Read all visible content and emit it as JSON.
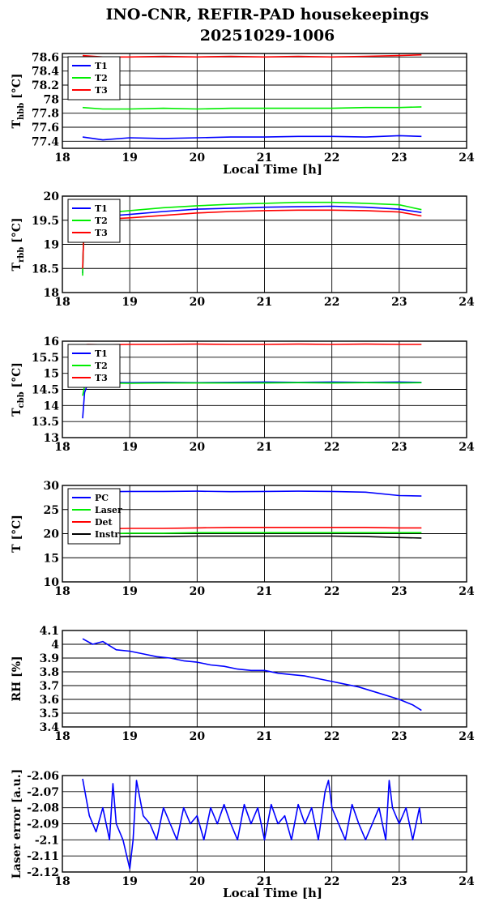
{
  "title": "INO-CNR, REFIR-PAD housekeepings",
  "subtitle": "20251029-1006",
  "colors": {
    "blue": "#0000ff",
    "green": "#00ee00",
    "red": "#ff0000",
    "black": "#000000",
    "grid": "#000000"
  },
  "chart_data": [
    {
      "type": "line",
      "ylabel": "T",
      "ylabel_sub": "hbb",
      "ylabel_unit": " [°C]",
      "xlabel": "Local Time [h]",
      "xlim": [
        18,
        24
      ],
      "ylim": [
        77.3,
        78.65
      ],
      "xticks": [
        "18",
        "19",
        "20",
        "21",
        "22",
        "23",
        "24"
      ],
      "yticks": [
        "77.4",
        "77.6",
        "77.8",
        "78",
        "78.2",
        "78.4",
        "78.6"
      ],
      "grid": true,
      "legend": "top-left",
      "x": [
        18.3,
        18.6,
        19.0,
        19.5,
        20.0,
        20.5,
        21.0,
        21.5,
        22.0,
        22.5,
        23.0,
        23.33
      ],
      "series": [
        {
          "name": "T1",
          "color": "blue",
          "values": [
            77.46,
            77.42,
            77.45,
            77.44,
            77.45,
            77.46,
            77.46,
            77.47,
            77.47,
            77.46,
            77.48,
            77.47
          ]
        },
        {
          "name": "T2",
          "color": "green",
          "values": [
            77.88,
            77.86,
            77.86,
            77.87,
            77.86,
            77.87,
            77.87,
            77.87,
            77.87,
            77.88,
            77.88,
            77.89
          ]
        },
        {
          "name": "T3",
          "color": "red",
          "values": [
            78.62,
            78.6,
            78.6,
            78.61,
            78.6,
            78.61,
            78.6,
            78.61,
            78.6,
            78.61,
            78.62,
            78.63
          ]
        }
      ]
    },
    {
      "type": "line",
      "ylabel": "T",
      "ylabel_sub": "rbb",
      "ylabel_unit": " [°C]",
      "xlabel": "",
      "xlim": [
        18,
        24
      ],
      "ylim": [
        18,
        20
      ],
      "xticks": [
        "18",
        "19",
        "20",
        "21",
        "22",
        "23",
        "24"
      ],
      "yticks": [
        "18",
        "18.5",
        "19",
        "19.5",
        "20"
      ],
      "grid": true,
      "legend": "top-left",
      "x": [
        18.3,
        18.32,
        18.4,
        18.6,
        19.0,
        19.5,
        20.0,
        20.5,
        21.0,
        21.5,
        22.0,
        22.5,
        23.0,
        23.33
      ],
      "series": [
        {
          "name": "T1",
          "color": "blue",
          "values": [
            18.4,
            19.4,
            19.52,
            19.58,
            19.62,
            19.68,
            19.73,
            19.75,
            19.77,
            19.78,
            19.79,
            19.77,
            19.73,
            19.66
          ]
        },
        {
          "name": "T2",
          "color": "green",
          "values": [
            18.35,
            19.5,
            19.6,
            19.65,
            19.7,
            19.76,
            19.8,
            19.83,
            19.85,
            19.87,
            19.87,
            19.85,
            19.82,
            19.72
          ]
        },
        {
          "name": "T3",
          "color": "red",
          "values": [
            18.5,
            19.3,
            19.48,
            19.52,
            19.55,
            19.6,
            19.65,
            19.68,
            19.7,
            19.71,
            19.71,
            19.7,
            19.67,
            19.59
          ]
        }
      ]
    },
    {
      "type": "line",
      "ylabel": "T",
      "ylabel_sub": "cbb",
      "ylabel_unit": " [°C]",
      "xlabel": "",
      "xlim": [
        18,
        24
      ],
      "ylim": [
        13,
        16
      ],
      "xticks": [
        "18",
        "19",
        "20",
        "21",
        "22",
        "23",
        "24"
      ],
      "yticks": [
        "13",
        "13.5",
        "14",
        "14.5",
        "15",
        "15.5",
        "16"
      ],
      "grid": true,
      "legend": "top-left",
      "x": [
        18.3,
        18.33,
        18.38,
        18.6,
        19.0,
        19.5,
        20.0,
        20.5,
        21.0,
        21.5,
        22.0,
        22.5,
        23.0,
        23.33
      ],
      "series": [
        {
          "name": "T1",
          "color": "blue",
          "values": [
            13.6,
            14.4,
            14.7,
            14.72,
            14.71,
            14.72,
            14.71,
            14.72,
            14.73,
            14.72,
            14.73,
            14.72,
            14.73,
            14.72
          ]
        },
        {
          "name": "T2",
          "color": "green",
          "values": [
            14.3,
            14.6,
            14.68,
            14.7,
            14.69,
            14.7,
            14.7,
            14.7,
            14.7,
            14.71,
            14.7,
            14.71,
            14.7,
            14.71
          ]
        },
        {
          "name": "T3",
          "color": "red",
          "values": [
            15.88,
            15.89,
            15.9,
            15.89,
            15.9,
            15.9,
            15.91,
            15.9,
            15.9,
            15.91,
            15.9,
            15.91,
            15.9,
            15.9
          ]
        }
      ]
    },
    {
      "type": "line",
      "ylabel": "T [°C]",
      "ylabel_sub": "",
      "ylabel_unit": "",
      "xlabel": "",
      "xlim": [
        18,
        24
      ],
      "ylim": [
        10,
        30
      ],
      "xticks": [
        "18",
        "19",
        "20",
        "21",
        "22",
        "23",
        "24"
      ],
      "yticks": [
        "10",
        "15",
        "20",
        "25",
        "30"
      ],
      "grid": true,
      "legend": "top-left",
      "x": [
        18.3,
        18.6,
        19.0,
        19.5,
        20.0,
        20.5,
        21.0,
        21.5,
        22.0,
        22.5,
        23.0,
        23.33
      ],
      "series": [
        {
          "name": "PC",
          "color": "blue",
          "values": [
            28.7,
            28.7,
            28.75,
            28.75,
            28.8,
            28.7,
            28.75,
            28.8,
            28.75,
            28.6,
            27.9,
            27.8
          ]
        },
        {
          "name": "Laser",
          "color": "green",
          "values": [
            20.0,
            20.0,
            20.1,
            20.1,
            20.2,
            20.2,
            20.2,
            20.2,
            20.2,
            20.2,
            20.2,
            20.2
          ]
        },
        {
          "name": "Det",
          "color": "red",
          "values": [
            20.9,
            21.0,
            21.1,
            21.1,
            21.2,
            21.3,
            21.3,
            21.3,
            21.3,
            21.3,
            21.2,
            21.2
          ]
        },
        {
          "name": "Instr",
          "color": "black",
          "values": [
            19.3,
            19.3,
            19.4,
            19.4,
            19.5,
            19.5,
            19.5,
            19.5,
            19.5,
            19.4,
            19.2,
            19.1
          ]
        }
      ]
    },
    {
      "type": "line",
      "ylabel": "RH [%]",
      "ylabel_sub": "",
      "ylabel_unit": "",
      "xlabel": "",
      "xlim": [
        18,
        24
      ],
      "ylim": [
        3.4,
        4.1
      ],
      "xticks": [
        "18",
        "19",
        "20",
        "21",
        "22",
        "23",
        "24"
      ],
      "yticks": [
        "3.4",
        "3.5",
        "3.6",
        "3.7",
        "3.8",
        "3.9",
        "4",
        "4.1"
      ],
      "grid": true,
      "legend": "none",
      "x": [
        18.3,
        18.45,
        18.6,
        18.8,
        19.0,
        19.2,
        19.4,
        19.6,
        19.8,
        20.0,
        20.2,
        20.4,
        20.6,
        20.8,
        21.0,
        21.2,
        21.4,
        21.6,
        21.8,
        22.0,
        22.2,
        22.4,
        22.6,
        22.8,
        23.0,
        23.2,
        23.33
      ],
      "series": [
        {
          "name": "RH",
          "color": "blue",
          "values": [
            4.04,
            4.0,
            4.02,
            3.96,
            3.95,
            3.93,
            3.91,
            3.9,
            3.88,
            3.87,
            3.85,
            3.84,
            3.82,
            3.81,
            3.81,
            3.79,
            3.78,
            3.77,
            3.75,
            3.73,
            3.71,
            3.69,
            3.66,
            3.63,
            3.6,
            3.56,
            3.52
          ]
        }
      ]
    },
    {
      "type": "line",
      "ylabel": "Laser error [a.u.]",
      "ylabel_sub": "",
      "ylabel_unit": "",
      "xlabel": "Local Time [h]",
      "xlim": [
        18,
        24
      ],
      "ylim": [
        -2.12,
        -2.06
      ],
      "xticks": [
        "18",
        "19",
        "20",
        "21",
        "22",
        "23",
        "24"
      ],
      "yticks": [
        "-2.12",
        "-2.11",
        "-2.1",
        "-2.09",
        "-2.08",
        "-2.07",
        "-2.06"
      ],
      "grid": true,
      "legend": "none",
      "x": [
        18.3,
        18.4,
        18.5,
        18.6,
        18.7,
        18.75,
        18.8,
        18.9,
        19.0,
        19.05,
        19.1,
        19.2,
        19.3,
        19.4,
        19.5,
        19.6,
        19.7,
        19.8,
        19.9,
        20.0,
        20.1,
        20.2,
        20.3,
        20.4,
        20.5,
        20.6,
        20.7,
        20.8,
        20.9,
        21.0,
        21.1,
        21.2,
        21.3,
        21.4,
        21.5,
        21.6,
        21.7,
        21.8,
        21.9,
        21.95,
        22.0,
        22.1,
        22.2,
        22.3,
        22.4,
        22.5,
        22.6,
        22.7,
        22.8,
        22.85,
        22.9,
        23.0,
        23.1,
        23.2,
        23.3,
        23.33
      ],
      "series": [
        {
          "name": "Laser error",
          "color": "blue",
          "values": [
            -2.062,
            -2.085,
            -2.095,
            -2.08,
            -2.1,
            -2.065,
            -2.09,
            -2.1,
            -2.118,
            -2.1,
            -2.063,
            -2.085,
            -2.09,
            -2.1,
            -2.08,
            -2.09,
            -2.1,
            -2.08,
            -2.09,
            -2.085,
            -2.1,
            -2.08,
            -2.09,
            -2.078,
            -2.09,
            -2.1,
            -2.078,
            -2.09,
            -2.08,
            -2.1,
            -2.078,
            -2.09,
            -2.085,
            -2.1,
            -2.078,
            -2.09,
            -2.08,
            -2.1,
            -2.07,
            -2.063,
            -2.08,
            -2.09,
            -2.1,
            -2.078,
            -2.09,
            -2.1,
            -2.09,
            -2.08,
            -2.1,
            -2.063,
            -2.08,
            -2.09,
            -2.08,
            -2.1,
            -2.08,
            -2.09
          ]
        }
      ]
    }
  ]
}
